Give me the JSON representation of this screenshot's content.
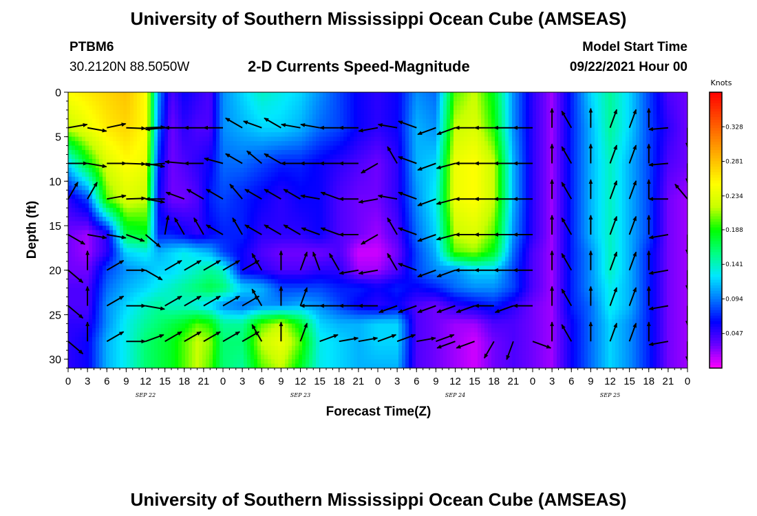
{
  "header": {
    "title": "University of Southern Mississippi Ocean Cube (AMSEAS)",
    "station_id": "PTBM6",
    "station_coords": "30.2120N  88.5050W",
    "plot_title": "2-D Currents Speed-Magnitude",
    "model_start_label": "Model Start Time",
    "model_start_value": "09/22/2021 Hour 00"
  },
  "footer": {
    "title": "University of Southern Mississippi Ocean Cube (AMSEAS)"
  },
  "chart_data": {
    "type": "heatmap",
    "title": "2-D Currents Speed-Magnitude",
    "xlabel": "Forecast Time(Z)",
    "ylabel": "Depth (ft)",
    "x_tick_labels": [
      "0",
      "3",
      "6",
      "9",
      "12",
      "15",
      "18",
      "21",
      "0",
      "3",
      "6",
      "9",
      "12",
      "15",
      "18",
      "21",
      "0",
      "3",
      "6",
      "9",
      "12",
      "15",
      "18",
      "21",
      "0",
      "3",
      "6",
      "9",
      "12",
      "15",
      "18",
      "21",
      "0"
    ],
    "day_labels": [
      "SEP 22",
      "SEP 23",
      "SEP 24",
      "SEP 25"
    ],
    "xlim_hours": [
      0,
      96
    ],
    "y_ticks": [
      0,
      5,
      10,
      15,
      20,
      25,
      30
    ],
    "ylim": [
      0,
      31
    ],
    "y_inverted": true,
    "colorbar": {
      "unit": "Knots",
      "tick_labels": [
        "0.328",
        "0.281",
        "0.234",
        "0.188",
        "0.141",
        "0.094",
        "0.047"
      ],
      "range": [
        0,
        0.375
      ],
      "colors": [
        "#ff00ff",
        "#6a00ff",
        "#0000ff",
        "#0078ff",
        "#00e8ff",
        "#00ff80",
        "#00ff00",
        "#c8ff00",
        "#ffff00",
        "#ffc000",
        "#ff8000",
        "#ff4000",
        "#ff0000"
      ]
    },
    "speed_depth_rows": [
      0,
      4,
      8,
      12,
      16,
      18,
      20,
      22,
      24,
      26,
      28,
      31
    ],
    "speed_time_hours": [
      0,
      3,
      6,
      9,
      12,
      14,
      16,
      18,
      20,
      22,
      24,
      27,
      30,
      33,
      36,
      39,
      42,
      45,
      48,
      51,
      54,
      57,
      60,
      63,
      66,
      69,
      72,
      75,
      78,
      81,
      84,
      87,
      90,
      93,
      96
    ],
    "speed_knots": [
      [
        0.25,
        0.26,
        0.27,
        0.28,
        0.25,
        0.1,
        0.04,
        0.06,
        0.05,
        0.04,
        0.1,
        0.12,
        0.14,
        0.13,
        0.12,
        0.1,
        0.08,
        0.06,
        0.05,
        0.06,
        0.1,
        0.09,
        0.2,
        0.22,
        0.18,
        0.1,
        0.05,
        0.02,
        0.07,
        0.12,
        0.15,
        0.12,
        0.08,
        0.04,
        0.03
      ],
      [
        0.22,
        0.24,
        0.26,
        0.27,
        0.25,
        0.09,
        0.03,
        0.05,
        0.04,
        0.04,
        0.1,
        0.11,
        0.12,
        0.12,
        0.11,
        0.09,
        0.08,
        0.06,
        0.05,
        0.06,
        0.11,
        0.1,
        0.22,
        0.23,
        0.19,
        0.1,
        0.05,
        0.02,
        0.07,
        0.11,
        0.15,
        0.12,
        0.08,
        0.05,
        0.03
      ],
      [
        0.12,
        0.18,
        0.23,
        0.25,
        0.24,
        0.07,
        0.03,
        0.04,
        0.05,
        0.06,
        0.09,
        0.09,
        0.08,
        0.07,
        0.07,
        0.06,
        0.05,
        0.04,
        0.03,
        0.05,
        0.11,
        0.12,
        0.24,
        0.25,
        0.22,
        0.11,
        0.05,
        0.02,
        0.07,
        0.11,
        0.14,
        0.11,
        0.08,
        0.04,
        0.03
      ],
      [
        0.05,
        0.08,
        0.2,
        0.23,
        0.22,
        0.06,
        0.03,
        0.03,
        0.04,
        0.07,
        0.08,
        0.07,
        0.06,
        0.05,
        0.06,
        0.06,
        0.04,
        0.03,
        0.03,
        0.05,
        0.1,
        0.13,
        0.24,
        0.25,
        0.22,
        0.11,
        0.05,
        0.02,
        0.07,
        0.11,
        0.14,
        0.11,
        0.08,
        0.03,
        0.02
      ],
      [
        0.03,
        0.02,
        0.05,
        0.17,
        0.18,
        0.07,
        0.07,
        0.06,
        0.05,
        0.06,
        0.07,
        0.07,
        0.05,
        0.05,
        0.05,
        0.06,
        0.04,
        0.03,
        0.02,
        0.04,
        0.09,
        0.12,
        0.22,
        0.23,
        0.2,
        0.1,
        0.05,
        0.02,
        0.07,
        0.11,
        0.14,
        0.11,
        0.08,
        0.03,
        0.02
      ],
      [
        0.03,
        0.02,
        0.05,
        0.12,
        0.13,
        0.11,
        0.12,
        0.13,
        0.12,
        0.11,
        0.08,
        0.06,
        0.04,
        0.03,
        0.03,
        0.03,
        0.04,
        0.01,
        0.01,
        0.03,
        0.08,
        0.11,
        0.2,
        0.21,
        0.18,
        0.09,
        0.04,
        0.02,
        0.07,
        0.1,
        0.14,
        0.11,
        0.07,
        0.03,
        0.02
      ],
      [
        0.03,
        0.03,
        0.08,
        0.1,
        0.11,
        0.12,
        0.12,
        0.13,
        0.14,
        0.15,
        0.14,
        0.06,
        0.05,
        0.04,
        0.04,
        0.05,
        0.05,
        0.02,
        0.02,
        0.04,
        0.08,
        0.1,
        0.1,
        0.12,
        0.12,
        0.08,
        0.04,
        0.02,
        0.07,
        0.1,
        0.14,
        0.11,
        0.07,
        0.03,
        0.02
      ],
      [
        0.04,
        0.04,
        0.09,
        0.11,
        0.12,
        0.13,
        0.14,
        0.15,
        0.16,
        0.17,
        0.16,
        0.12,
        0.11,
        0.08,
        0.08,
        0.08,
        0.07,
        0.07,
        0.06,
        0.07,
        0.06,
        0.07,
        0.09,
        0.1,
        0.1,
        0.08,
        0.04,
        0.02,
        0.07,
        0.1,
        0.13,
        0.11,
        0.07,
        0.03,
        0.02
      ],
      [
        0.04,
        0.04,
        0.1,
        0.12,
        0.14,
        0.15,
        0.14,
        0.14,
        0.13,
        0.12,
        0.1,
        0.09,
        0.1,
        0.1,
        0.11,
        0.1,
        0.08,
        0.06,
        0.05,
        0.06,
        0.04,
        0.03,
        0.05,
        0.06,
        0.07,
        0.05,
        0.03,
        0.02,
        0.07,
        0.09,
        0.13,
        0.11,
        0.07,
        0.03,
        0.02
      ],
      [
        0.05,
        0.05,
        0.1,
        0.13,
        0.15,
        0.16,
        0.17,
        0.18,
        0.2,
        0.19,
        0.15,
        0.15,
        0.2,
        0.22,
        0.18,
        0.12,
        0.11,
        0.11,
        0.12,
        0.12,
        0.04,
        0.03,
        0.02,
        0.02,
        0.04,
        0.04,
        0.03,
        0.02,
        0.06,
        0.09,
        0.12,
        0.1,
        0.07,
        0.03,
        0.02
      ],
      [
        0.05,
        0.06,
        0.11,
        0.13,
        0.16,
        0.17,
        0.18,
        0.2,
        0.22,
        0.21,
        0.16,
        0.16,
        0.22,
        0.24,
        0.2,
        0.13,
        0.12,
        0.11,
        0.12,
        0.12,
        0.04,
        0.03,
        0.02,
        0.01,
        0.03,
        0.04,
        0.03,
        0.02,
        0.06,
        0.09,
        0.12,
        0.1,
        0.07,
        0.03,
        0.02
      ],
      [
        0.05,
        0.06,
        0.11,
        0.13,
        0.16,
        0.17,
        0.18,
        0.2,
        0.22,
        0.2,
        0.16,
        0.15,
        0.2,
        0.22,
        0.18,
        0.13,
        0.12,
        0.11,
        0.11,
        0.11,
        0.04,
        0.03,
        0.02,
        0.01,
        0.03,
        0.04,
        0.03,
        0.02,
        0.06,
        0.09,
        0.12,
        0.1,
        0.07,
        0.03,
        0.02
      ]
    ],
    "vector_depths": [
      4,
      8,
      12,
      16,
      20,
      24,
      28
    ],
    "vector_time_hours": [
      0,
      3,
      6,
      9,
      12,
      15,
      18,
      21,
      24,
      27,
      30,
      33,
      36,
      39,
      42,
      45,
      48,
      51,
      54,
      57,
      60,
      63,
      66,
      69,
      72,
      75,
      78,
      81,
      84,
      87,
      90,
      93,
      96
    ],
    "vector_directions_deg": [
      [
        80,
        100,
        78,
        92,
        88,
        265,
        270,
        270,
        270,
        300,
        290,
        300,
        280,
        280,
        270,
        270,
        260,
        280,
        290,
        250,
        250,
        270,
        270,
        270,
        270,
        0,
        330,
        0,
        20,
        20,
        0,
        265,
        180
      ],
      [
        90,
        100,
        90,
        92,
        100,
        265,
        275,
        270,
        285,
        300,
        310,
        300,
        270,
        270,
        270,
        270,
        240,
        330,
        290,
        250,
        255,
        270,
        270,
        270,
        270,
        0,
        330,
        0,
        20,
        20,
        0,
        265,
        180
      ],
      [
        30,
        30,
        80,
        88,
        100,
        270,
        290,
        300,
        300,
        320,
        300,
        300,
        300,
        280,
        290,
        270,
        260,
        280,
        290,
        250,
        255,
        270,
        270,
        270,
        270,
        0,
        330,
        0,
        20,
        20,
        0,
        270,
        320
      ],
      [
        120,
        100,
        100,
        110,
        130,
        10,
        330,
        330,
        300,
        330,
        300,
        300,
        300,
        290,
        290,
        270,
        240,
        330,
        290,
        250,
        255,
        270,
        270,
        270,
        270,
        0,
        330,
        0,
        20,
        20,
        0,
        260,
        180
      ],
      [
        130,
        0,
        60,
        90,
        120,
        60,
        60,
        60,
        60,
        60,
        330,
        0,
        20,
        340,
        330,
        260,
        260,
        330,
        290,
        250,
        250,
        270,
        270,
        270,
        270,
        0,
        330,
        0,
        20,
        20,
        0,
        260,
        180
      ],
      [
        130,
        0,
        60,
        90,
        100,
        60,
        60,
        60,
        60,
        60,
        330,
        0,
        20,
        270,
        270,
        270,
        270,
        250,
        250,
        250,
        250,
        250,
        270,
        250,
        270,
        0,
        330,
        0,
        20,
        20,
        0,
        260,
        180
      ],
      [
        130,
        0,
        60,
        90,
        70,
        60,
        60,
        60,
        60,
        60,
        330,
        0,
        20,
        70,
        80,
        80,
        70,
        70,
        80,
        70,
        250,
        250,
        210,
        200,
        110,
        0,
        330,
        0,
        20,
        20,
        0,
        260,
        180
      ]
    ]
  }
}
